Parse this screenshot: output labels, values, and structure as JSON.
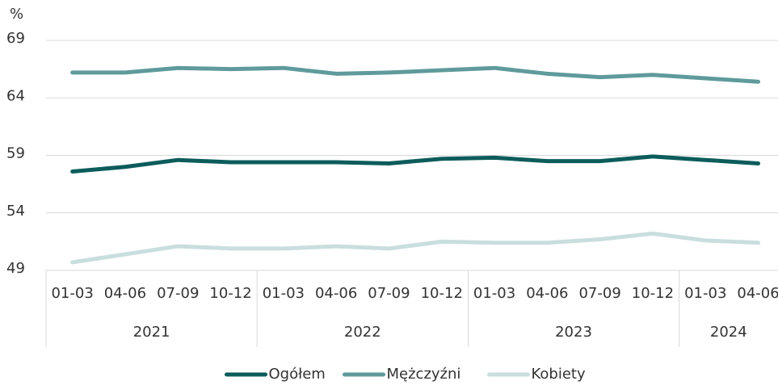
{
  "chart_data": {
    "type": "line",
    "y_unit": "%",
    "categories": [
      "01-03",
      "04-06",
      "07-09",
      "10-12",
      "01-03",
      "04-06",
      "07-09",
      "10-12",
      "01-03",
      "04-06",
      "07-09",
      "10-12",
      "01-03",
      "04-06"
    ],
    "groups": [
      {
        "label": "2021",
        "span": 4
      },
      {
        "label": "2022",
        "span": 4
      },
      {
        "label": "2023",
        "span": 4
      },
      {
        "label": "2024",
        "span": 2
      }
    ],
    "series": [
      {
        "name": "Ogółem",
        "color": "#0d5c5c",
        "values": [
          57.6,
          58.0,
          58.6,
          58.4,
          58.4,
          58.4,
          58.3,
          58.7,
          58.8,
          58.5,
          58.5,
          58.9,
          58.6,
          58.3
        ]
      },
      {
        "name": "Mężczyźni",
        "color": "#5f9a9c",
        "values": [
          66.2,
          66.2,
          66.6,
          66.5,
          66.6,
          66.1,
          66.2,
          66.4,
          66.6,
          66.1,
          65.8,
          66.0,
          65.7,
          65.4
        ]
      },
      {
        "name": "Kobiety",
        "color": "#c9dede",
        "values": [
          49.7,
          50.4,
          51.1,
          50.9,
          50.9,
          51.1,
          50.9,
          51.5,
          51.4,
          51.4,
          51.7,
          52.2,
          51.6,
          51.4
        ]
      }
    ],
    "ylim": [
      49,
      69
    ],
    "yticks": [
      49,
      54,
      59,
      64,
      69
    ],
    "grid": true,
    "legend": "bottom"
  }
}
